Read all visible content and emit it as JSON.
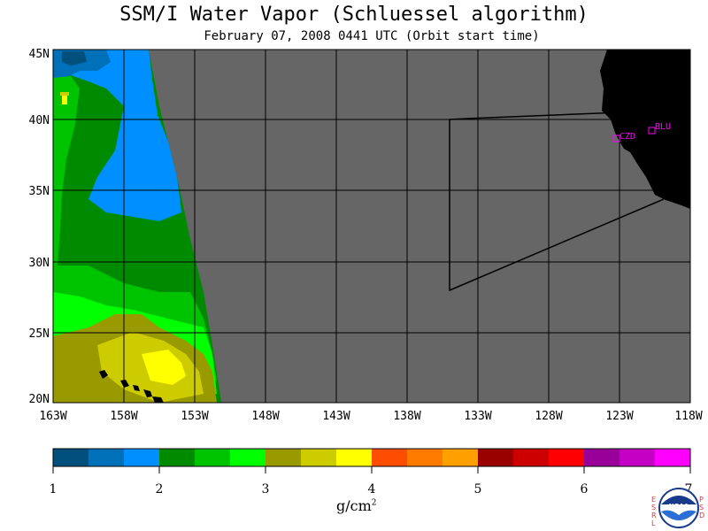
{
  "title": "SSM/I Water Vapor (Schluessel algorithm)",
  "subtitle": "February 07, 2008  0441 UTC  (Orbit start time)",
  "lat_labels": [
    "45N",
    "40N",
    "35N",
    "30N",
    "25N",
    "20N"
  ],
  "lon_labels": [
    "163W",
    "158W",
    "153W",
    "148W",
    "143W",
    "138W",
    "133W",
    "128W",
    "123W",
    "118W"
  ],
  "stations": [
    {
      "code": "CZD"
    },
    {
      "code": "BLU"
    }
  ],
  "colorbar": {
    "ticks": [
      "1",
      "2",
      "3",
      "4",
      "5",
      "6",
      "7"
    ],
    "unit": "g/cm",
    "unit_sup": "2",
    "colors": [
      "#004f7c",
      "#0070b8",
      "#008fff",
      "#008a00",
      "#00c300",
      "#00ff00",
      "#999900",
      "#cccc00",
      "#ffff00",
      "#ff4d00",
      "#ff7b00",
      "#ff9f00",
      "#990000",
      "#cc0000",
      "#ff0000",
      "#99009a",
      "#c300c3",
      "#ff00ff"
    ]
  },
  "colors": {
    "ocean_no_data": "#666666",
    "land": "#000000",
    "station": "#ff00ff",
    "grid": "#000000"
  },
  "logo": {
    "text": "NOAA",
    "left_text": "ESRL",
    "right_text": "PSD"
  }
}
